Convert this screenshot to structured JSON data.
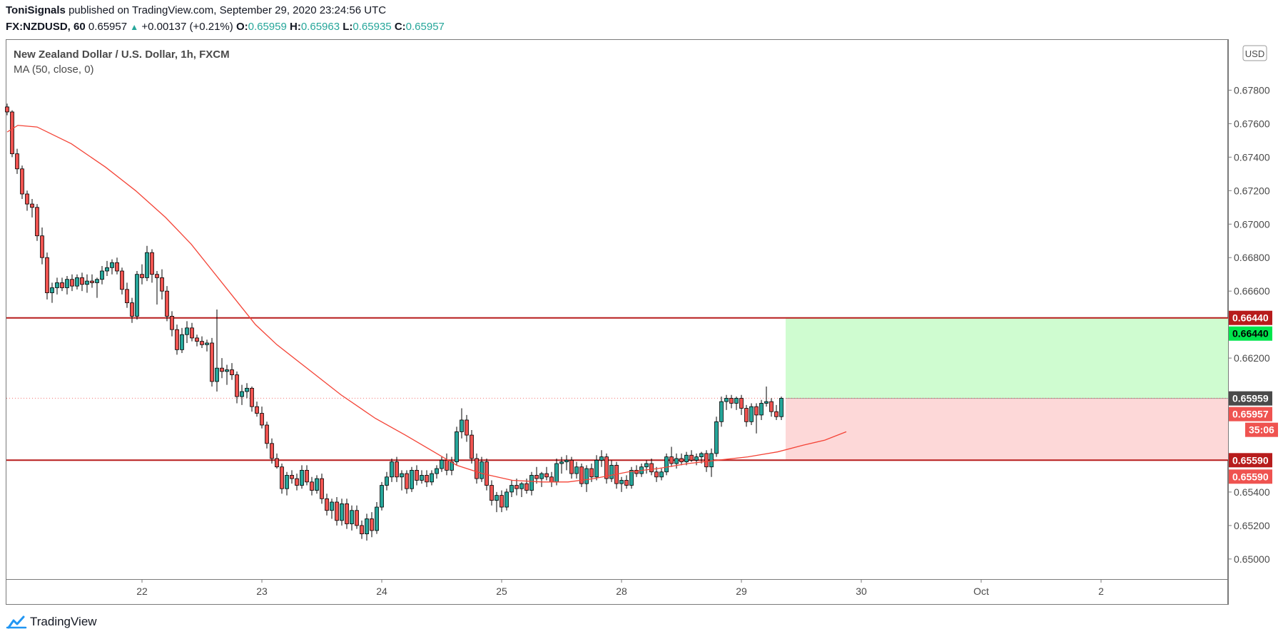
{
  "header": {
    "author": "ToniSignals",
    "published": "published on TradingView.com, September 29, 2020 23:24:56 UTC",
    "symbol": "FX:NZDUSD, 60",
    "last": "0.65957",
    "change": "+0.00137 (+0.21%)",
    "o_label": "O:",
    "o": "0.65959",
    "h_label": "H:",
    "h": "0.65963",
    "l_label": "L:",
    "l": "0.65935",
    "c_label": "C:",
    "c": "0.65957"
  },
  "legend": {
    "title": "New Zealand Dollar / U.S. Dollar, 1h, FXCM",
    "indicator": "MA (50, close, 0)"
  },
  "currency_badge": "USD",
  "brand": {
    "name": "TradingView"
  },
  "colors": {
    "up": "#26a69a",
    "down": "#ef5350",
    "ma": "#f44336",
    "hline": "#b71c1c",
    "profit": "#cffcd0",
    "loss": "#fdd8d8",
    "target_badge": "#00e64d",
    "last_price_badge": "#4a4a4a"
  },
  "chart_data": {
    "type": "candlestick",
    "title": "New Zealand Dollar / U.S. Dollar, 1h, FXCM",
    "ylim": [
      0.6488,
      0.681
    ],
    "y_ticks": [
      "0.67800",
      "0.67600",
      "0.67400",
      "0.67200",
      "0.67000",
      "0.66800",
      "0.66600",
      "0.66200",
      "0.65400",
      "0.65200",
      "0.65000"
    ],
    "x_ticks": [
      "22",
      "23",
      "24",
      "25",
      "28",
      "29",
      "30",
      "Oct",
      "2"
    ],
    "x_tick_bars": [
      27,
      51,
      75,
      99,
      123,
      147,
      171,
      195,
      219
    ],
    "candles_ohlc": [
      [
        0.677,
        0.6772,
        0.6765,
        0.6767
      ],
      [
        0.6767,
        0.6768,
        0.674,
        0.6742
      ],
      [
        0.6742,
        0.6745,
        0.673,
        0.6733
      ],
      [
        0.6733,
        0.6735,
        0.6715,
        0.6718
      ],
      [
        0.6718,
        0.672,
        0.6708,
        0.6712
      ],
      [
        0.6712,
        0.6715,
        0.6704,
        0.671
      ],
      [
        0.671,
        0.6712,
        0.669,
        0.6693
      ],
      [
        0.6693,
        0.6698,
        0.6676,
        0.668
      ],
      [
        0.668,
        0.6683,
        0.6655,
        0.6659
      ],
      [
        0.6659,
        0.6665,
        0.6653,
        0.6662
      ],
      [
        0.6662,
        0.6668,
        0.6658,
        0.6665
      ],
      [
        0.6665,
        0.6668,
        0.666,
        0.6662
      ],
      [
        0.6662,
        0.6669,
        0.6658,
        0.6667
      ],
      [
        0.6667,
        0.667,
        0.666,
        0.6663
      ],
      [
        0.6663,
        0.667,
        0.6661,
        0.6668
      ],
      [
        0.6668,
        0.6671,
        0.666,
        0.6664
      ],
      [
        0.6664,
        0.667,
        0.6659,
        0.6666
      ],
      [
        0.6666,
        0.667,
        0.6662,
        0.6665
      ],
      [
        0.6665,
        0.6668,
        0.6656,
        0.6667
      ],
      [
        0.6667,
        0.6675,
        0.6664,
        0.6672
      ],
      [
        0.6672,
        0.6678,
        0.6669,
        0.6674
      ],
      [
        0.6674,
        0.6679,
        0.667,
        0.6677
      ],
      [
        0.6677,
        0.668,
        0.667,
        0.6672
      ],
      [
        0.6672,
        0.6674,
        0.6658,
        0.6661
      ],
      [
        0.6661,
        0.6665,
        0.665,
        0.6653
      ],
      [
        0.6653,
        0.6656,
        0.6641,
        0.6645
      ],
      [
        0.6645,
        0.6672,
        0.6643,
        0.667
      ],
      [
        0.667,
        0.6676,
        0.6664,
        0.6668
      ],
      [
        0.6668,
        0.6687,
        0.6666,
        0.6683
      ],
      [
        0.6683,
        0.6685,
        0.6665,
        0.667
      ],
      [
        0.667,
        0.6672,
        0.6652,
        0.6668
      ],
      [
        0.6668,
        0.6673,
        0.6655,
        0.666
      ],
      [
        0.666,
        0.6663,
        0.6642,
        0.6645
      ],
      [
        0.6645,
        0.6648,
        0.6633,
        0.6637
      ],
      [
        0.6637,
        0.664,
        0.6622,
        0.6625
      ],
      [
        0.6625,
        0.6638,
        0.6623,
        0.6634
      ],
      [
        0.6634,
        0.6642,
        0.6629,
        0.6638
      ],
      [
        0.6638,
        0.6641,
        0.663,
        0.6632
      ],
      [
        0.6632,
        0.6634,
        0.6627,
        0.663
      ],
      [
        0.663,
        0.6633,
        0.6626,
        0.6628
      ],
      [
        0.6628,
        0.6631,
        0.6624,
        0.6629
      ],
      [
        0.6629,
        0.6632,
        0.6603,
        0.6606
      ],
      [
        0.6606,
        0.6649,
        0.66,
        0.6614
      ],
      [
        0.6614,
        0.662,
        0.6608,
        0.6612
      ],
      [
        0.6612,
        0.6616,
        0.6604,
        0.6613
      ],
      [
        0.6613,
        0.6617,
        0.6607,
        0.661
      ],
      [
        0.661,
        0.6612,
        0.6593,
        0.6597
      ],
      [
        0.6597,
        0.6604,
        0.6592,
        0.66
      ],
      [
        0.66,
        0.6605,
        0.6596,
        0.6602
      ],
      [
        0.6602,
        0.6603,
        0.6588,
        0.6591
      ],
      [
        0.6591,
        0.6594,
        0.6585,
        0.6587
      ],
      [
        0.6587,
        0.6591,
        0.6578,
        0.658
      ],
      [
        0.658,
        0.6582,
        0.6566,
        0.6569
      ],
      [
        0.6569,
        0.6572,
        0.6557,
        0.656
      ],
      [
        0.656,
        0.6563,
        0.6554,
        0.6555
      ],
      [
        0.6555,
        0.6557,
        0.6539,
        0.6542
      ],
      [
        0.6542,
        0.6552,
        0.6538,
        0.655
      ],
      [
        0.655,
        0.6553,
        0.6545,
        0.6548
      ],
      [
        0.6548,
        0.6551,
        0.6541,
        0.6544
      ],
      [
        0.6544,
        0.6556,
        0.6542,
        0.6553
      ],
      [
        0.6553,
        0.6556,
        0.6544,
        0.6546
      ],
      [
        0.6546,
        0.6549,
        0.6538,
        0.6541
      ],
      [
        0.6541,
        0.655,
        0.6539,
        0.6548
      ],
      [
        0.6548,
        0.6551,
        0.6533,
        0.6536
      ],
      [
        0.6536,
        0.6539,
        0.6526,
        0.6529
      ],
      [
        0.6529,
        0.6536,
        0.6524,
        0.6534
      ],
      [
        0.6534,
        0.6537,
        0.652,
        0.6523
      ],
      [
        0.6523,
        0.6536,
        0.652,
        0.6533
      ],
      [
        0.6533,
        0.6536,
        0.6518,
        0.6521
      ],
      [
        0.6521,
        0.6532,
        0.6517,
        0.6529
      ],
      [
        0.6529,
        0.6532,
        0.6518,
        0.652
      ],
      [
        0.652,
        0.6523,
        0.6512,
        0.6515
      ],
      [
        0.6515,
        0.6527,
        0.6511,
        0.6524
      ],
      [
        0.6524,
        0.6528,
        0.6513,
        0.6517
      ],
      [
        0.6517,
        0.6534,
        0.6515,
        0.6531
      ],
      [
        0.6531,
        0.6546,
        0.6529,
        0.6544
      ],
      [
        0.6544,
        0.6552,
        0.6541,
        0.6549
      ],
      [
        0.6549,
        0.656,
        0.6546,
        0.6558
      ],
      [
        0.6558,
        0.6561,
        0.6546,
        0.6549
      ],
      [
        0.6549,
        0.6553,
        0.6541,
        0.6551
      ],
      [
        0.6551,
        0.6553,
        0.6539,
        0.6542
      ],
      [
        0.6542,
        0.6555,
        0.654,
        0.6553
      ],
      [
        0.6553,
        0.6556,
        0.6544,
        0.6547
      ],
      [
        0.6547,
        0.6553,
        0.6545,
        0.655
      ],
      [
        0.655,
        0.6553,
        0.6543,
        0.6546
      ],
      [
        0.6546,
        0.6553,
        0.6544,
        0.6551
      ],
      [
        0.6551,
        0.6556,
        0.6548,
        0.6554
      ],
      [
        0.6554,
        0.6561,
        0.6552,
        0.6559
      ],
      [
        0.6559,
        0.6563,
        0.655,
        0.6553
      ],
      [
        0.6553,
        0.6561,
        0.655,
        0.6558
      ],
      [
        0.6558,
        0.6579,
        0.6556,
        0.6576
      ],
      [
        0.6576,
        0.659,
        0.6572,
        0.6583
      ],
      [
        0.6583,
        0.6586,
        0.657,
        0.6574
      ],
      [
        0.6574,
        0.6577,
        0.6557,
        0.656
      ],
      [
        0.656,
        0.6563,
        0.6545,
        0.6548
      ],
      [
        0.6548,
        0.6561,
        0.6546,
        0.6558
      ],
      [
        0.6558,
        0.656,
        0.6541,
        0.6544
      ],
      [
        0.6544,
        0.6547,
        0.6532,
        0.6535
      ],
      [
        0.6535,
        0.654,
        0.6528,
        0.6538
      ],
      [
        0.6538,
        0.6541,
        0.6528,
        0.6531
      ],
      [
        0.6531,
        0.6542,
        0.6529,
        0.654
      ],
      [
        0.654,
        0.6547,
        0.6537,
        0.6544
      ],
      [
        0.6544,
        0.6548,
        0.6538,
        0.6542
      ],
      [
        0.6542,
        0.6546,
        0.6537,
        0.6545
      ],
      [
        0.6545,
        0.6548,
        0.6539,
        0.6541
      ],
      [
        0.6541,
        0.6552,
        0.6538,
        0.655
      ],
      [
        0.655,
        0.6555,
        0.6545,
        0.6548
      ],
      [
        0.6548,
        0.6552,
        0.6543,
        0.6551
      ],
      [
        0.6551,
        0.6555,
        0.6547,
        0.6549
      ],
      [
        0.6549,
        0.6552,
        0.6543,
        0.6546
      ],
      [
        0.6546,
        0.656,
        0.6544,
        0.6557
      ],
      [
        0.6557,
        0.6561,
        0.6551,
        0.6558
      ],
      [
        0.6558,
        0.6562,
        0.6553,
        0.6559
      ],
      [
        0.6559,
        0.6561,
        0.6548,
        0.6551
      ],
      [
        0.6551,
        0.6558,
        0.6548,
        0.6555
      ],
      [
        0.6555,
        0.6557,
        0.6543,
        0.6545
      ],
      [
        0.6545,
        0.6556,
        0.654,
        0.6554
      ],
      [
        0.6554,
        0.6557,
        0.6546,
        0.6549
      ],
      [
        0.6549,
        0.6562,
        0.6547,
        0.6559
      ],
      [
        0.6559,
        0.6565,
        0.6555,
        0.6561
      ],
      [
        0.6561,
        0.6563,
        0.6545,
        0.6548
      ],
      [
        0.6548,
        0.6559,
        0.6546,
        0.6556
      ],
      [
        0.6556,
        0.6558,
        0.6542,
        0.6545
      ],
      [
        0.6545,
        0.6549,
        0.654,
        0.6547
      ],
      [
        0.6547,
        0.655,
        0.6542,
        0.6544
      ],
      [
        0.6544,
        0.6555,
        0.6542,
        0.6553
      ],
      [
        0.6553,
        0.6556,
        0.6549,
        0.6551
      ],
      [
        0.6551,
        0.6557,
        0.6549,
        0.6555
      ],
      [
        0.6555,
        0.6559,
        0.6551,
        0.6557
      ],
      [
        0.6557,
        0.656,
        0.655,
        0.6552
      ],
      [
        0.6552,
        0.6555,
        0.6546,
        0.6549
      ],
      [
        0.6549,
        0.6554,
        0.6547,
        0.6552
      ],
      [
        0.6552,
        0.6563,
        0.655,
        0.6561
      ],
      [
        0.6561,
        0.6567,
        0.6555,
        0.6557
      ],
      [
        0.6557,
        0.6563,
        0.6554,
        0.656
      ],
      [
        0.656,
        0.6563,
        0.6556,
        0.6558
      ],
      [
        0.6558,
        0.6564,
        0.6556,
        0.6562
      ],
      [
        0.6562,
        0.6565,
        0.6558,
        0.6559
      ],
      [
        0.6559,
        0.6563,
        0.6556,
        0.6561
      ],
      [
        0.6561,
        0.6564,
        0.6557,
        0.6563
      ],
      [
        0.6563,
        0.6565,
        0.6552,
        0.6555
      ],
      [
        0.6555,
        0.6566,
        0.6549,
        0.6563
      ],
      [
        0.6563,
        0.6585,
        0.6561,
        0.6582
      ],
      [
        0.6582,
        0.6597,
        0.6579,
        0.6594
      ],
      [
        0.6594,
        0.6598,
        0.6589,
        0.6596
      ],
      [
        0.6596,
        0.6598,
        0.659,
        0.6593
      ],
      [
        0.6593,
        0.6597,
        0.6589,
        0.6596
      ],
      [
        0.6596,
        0.6598,
        0.6586,
        0.659
      ],
      [
        0.659,
        0.6592,
        0.6579,
        0.6582
      ],
      [
        0.6582,
        0.6593,
        0.658,
        0.6591
      ],
      [
        0.6591,
        0.6593,
        0.6575,
        0.6586
      ],
      [
        0.6586,
        0.6595,
        0.6583,
        0.6593
      ],
      [
        0.6593,
        0.6603,
        0.6591,
        0.6594
      ],
      [
        0.6594,
        0.6596,
        0.6585,
        0.6588
      ],
      [
        0.6588,
        0.6592,
        0.6583,
        0.6585
      ],
      [
        0.6585,
        0.6597,
        0.6583,
        0.6596
      ]
    ],
    "moving_average": {
      "name": "MA (50, close, 0)",
      "values": [
        [
          0,
          0.6755
        ],
        [
          5,
          0.6759
        ],
        [
          14,
          0.6758
        ],
        [
          30,
          0.6748
        ],
        [
          46,
          0.6734
        ],
        [
          60,
          0.672
        ],
        [
          74,
          0.6704
        ],
        [
          86,
          0.6688
        ],
        [
          96,
          0.6672
        ],
        [
          106,
          0.6656
        ],
        [
          116,
          0.664
        ],
        [
          126,
          0.6628
        ],
        [
          140,
          0.6614
        ],
        [
          156,
          0.6598
        ],
        [
          172,
          0.6584
        ],
        [
          186,
          0.6574
        ],
        [
          198,
          0.6565
        ],
        [
          210,
          0.6556
        ],
        [
          222,
          0.6551
        ],
        [
          236,
          0.6547
        ],
        [
          250,
          0.6546
        ],
        [
          262,
          0.6546
        ],
        [
          274,
          0.6548
        ],
        [
          290,
          0.6552
        ],
        [
          304,
          0.6554
        ],
        [
          318,
          0.6557
        ],
        [
          332,
          0.6559
        ],
        [
          346,
          0.6561
        ],
        [
          360,
          0.6564
        ],
        [
          372,
          0.6568
        ],
        [
          382,
          0.6571
        ],
        [
          392,
          0.6576
        ]
      ]
    },
    "horizontal_lines": [
      0.6644,
      0.6559
    ],
    "position": {
      "type": "long",
      "entry": 0.65959,
      "target": 0.6644,
      "stop": 0.6559
    },
    "price_labels": {
      "resistance": "0.66440",
      "target": "0.66440",
      "entry": "0.65959",
      "last": "0.65957",
      "countdown": "35:06",
      "support": "0.65590",
      "stop": "0.65590"
    }
  }
}
